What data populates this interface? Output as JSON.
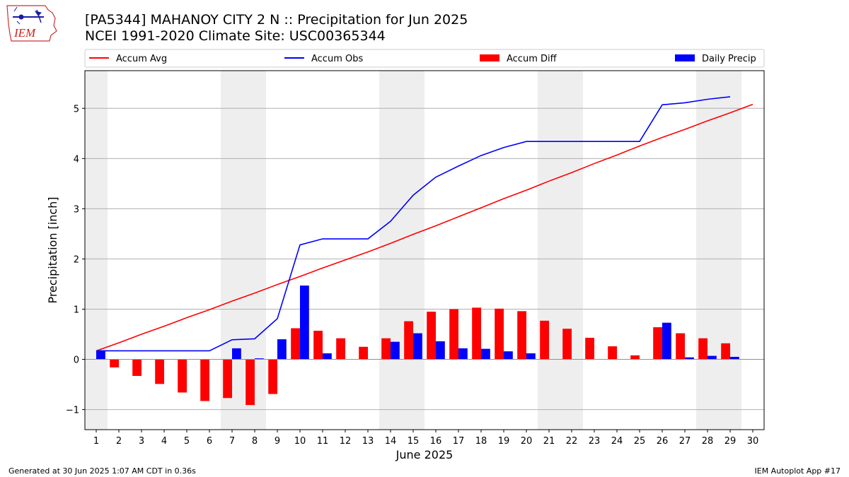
{
  "header": {
    "title_line1": "[PA5344] MAHANOY CITY 2 N :: Precipitation for Jun 2025",
    "title_line2": "NCEI 1991-2020 Climate Site: USC00365344",
    "logo_text": "IEM"
  },
  "footer": {
    "left": "Generated at 30 Jun 2025 1:07 AM CDT in 0.36s",
    "right": "IEM Autoplot App #17"
  },
  "colors": {
    "accum_avg": "#ff0000",
    "accum_obs": "#0000ff",
    "accum_diff": "#ff0000",
    "daily_precip": "#0000ff",
    "weekend_band": "#eeeeee",
    "grid": "#b0b0b0"
  },
  "chart_data": {
    "type": "bar",
    "xlabel": "June 2025",
    "ylabel": "Precipitation [inch]",
    "ylim": [
      -1.4,
      5.75
    ],
    "yticks": [
      -1,
      0,
      1,
      2,
      3,
      4,
      5
    ],
    "ytick_labels": [
      "−1",
      "0",
      "1",
      "2",
      "3",
      "4",
      "5"
    ],
    "xlim": [
      0.5,
      30.5
    ],
    "grid": "horizontal",
    "legend_placement": "top",
    "weekend_bands": [
      [
        0.5,
        1.5
      ],
      [
        6.5,
        8.5
      ],
      [
        13.5,
        15.5
      ],
      [
        20.5,
        22.5
      ],
      [
        27.5,
        29.5
      ]
    ],
    "categories": [
      "1",
      "2",
      "3",
      "4",
      "5",
      "6",
      "7",
      "8",
      "9",
      "10",
      "11",
      "12",
      "13",
      "14",
      "15",
      "16",
      "17",
      "18",
      "19",
      "20",
      "21",
      "22",
      "23",
      "24",
      "25",
      "26",
      "27",
      "28",
      "29",
      "30"
    ],
    "series": [
      {
        "name": "Accum Avg",
        "type": "line",
        "values": [
          0.17,
          0.33,
          0.5,
          0.66,
          0.83,
          0.99,
          1.16,
          1.32,
          1.49,
          1.65,
          1.82,
          1.98,
          2.14,
          2.31,
          2.49,
          2.66,
          2.84,
          3.02,
          3.2,
          3.37,
          3.55,
          3.72,
          3.9,
          4.07,
          4.25,
          4.42,
          4.58,
          4.75,
          4.91,
          5.08
        ]
      },
      {
        "name": "Accum Obs",
        "type": "line",
        "values": [
          0.17,
          0.17,
          0.17,
          0.17,
          0.17,
          0.17,
          0.39,
          0.41,
          0.81,
          2.28,
          2.4,
          2.4,
          2.4,
          2.75,
          3.27,
          3.63,
          3.85,
          4.06,
          4.22,
          4.34,
          4.34,
          4.34,
          4.34,
          4.34,
          4.34,
          5.07,
          5.11,
          5.18,
          5.23,
          null
        ]
      },
      {
        "name": "Accum Diff",
        "type": "bar",
        "values": [
          0.0,
          -0.16,
          -0.33,
          -0.49,
          -0.66,
          -0.83,
          -0.77,
          -0.91,
          -0.69,
          0.62,
          0.57,
          0.42,
          0.25,
          0.42,
          0.76,
          0.95,
          1.0,
          1.03,
          1.01,
          0.96,
          0.77,
          0.61,
          0.43,
          0.26,
          0.08,
          0.64,
          0.52,
          0.42,
          0.32,
          null
        ]
      },
      {
        "name": "Daily Precip",
        "type": "bar",
        "values": [
          0.17,
          0.0,
          0.0,
          0.0,
          0.0,
          0.0,
          0.22,
          0.02,
          0.4,
          1.47,
          0.12,
          0.0,
          0.0,
          0.35,
          0.52,
          0.36,
          0.22,
          0.21,
          0.16,
          0.12,
          0.0,
          0.0,
          0.0,
          0.0,
          0.0,
          0.73,
          0.04,
          0.07,
          0.05,
          null
        ]
      }
    ]
  }
}
